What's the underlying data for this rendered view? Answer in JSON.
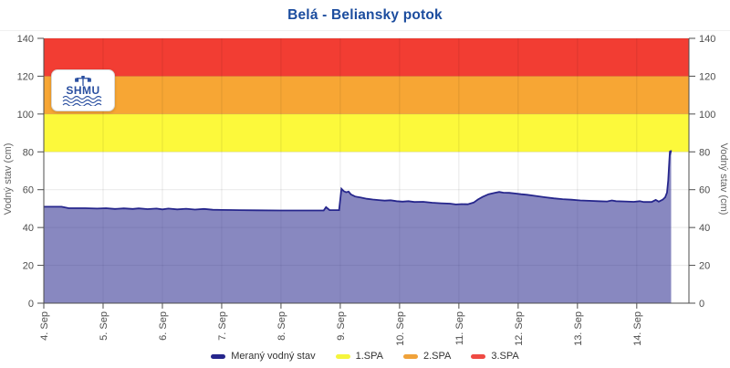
{
  "header": {
    "title": "Belá - Beliansky potok"
  },
  "logo": {
    "text": "SHMU"
  },
  "chart_data": {
    "type": "area",
    "title": "Belá - Beliansky potok",
    "ylabel_left": "Vodný stav (cm)",
    "ylabel_right": "Vodný stav (cm)",
    "ylim": [
      0,
      140
    ],
    "yticks": [
      0,
      20,
      40,
      60,
      80,
      100,
      120,
      140
    ],
    "x_domain_days": [
      4,
      14.88
    ],
    "xticks": [
      {
        "day": 4,
        "label": "4. Sep"
      },
      {
        "day": 5,
        "label": "5. Sep"
      },
      {
        "day": 6,
        "label": "6. Sep"
      },
      {
        "day": 7,
        "label": "7. Sep"
      },
      {
        "day": 8,
        "label": "8. Sep"
      },
      {
        "day": 9,
        "label": "9. Sep"
      },
      {
        "day": 10,
        "label": "10. Sep"
      },
      {
        "day": 11,
        "label": "11. Sep"
      },
      {
        "day": 12,
        "label": "12. Sep"
      },
      {
        "day": 13,
        "label": "13. Sep"
      },
      {
        "day": 14,
        "label": "14. Sep"
      }
    ],
    "grid": true,
    "legend_position": "bottom",
    "bands": [
      {
        "key": "1spa",
        "label": "1.SPA",
        "from": 80,
        "to": 100,
        "color": "#fcf93b"
      },
      {
        "key": "2spa",
        "label": "2.SPA",
        "from": 100,
        "to": 120,
        "color": "#f7a634"
      },
      {
        "key": "3spa",
        "label": "3.SPA",
        "from": 120,
        "to": 140,
        "color": "#f23d33"
      }
    ],
    "series": [
      {
        "name": "Meraný vodný stav",
        "unit": "cm",
        "line_color": "#26268c",
        "fill_color": "rgba(38,38,140,0.55)",
        "points_day_cm": [
          [
            4.0,
            51
          ],
          [
            4.3,
            51
          ],
          [
            4.42,
            50.2
          ],
          [
            4.7,
            50.2
          ],
          [
            4.9,
            50
          ],
          [
            5.05,
            50.2
          ],
          [
            5.2,
            49.8
          ],
          [
            5.35,
            50.1
          ],
          [
            5.5,
            49.8
          ],
          [
            5.6,
            50.1
          ],
          [
            5.75,
            49.7
          ],
          [
            5.9,
            50
          ],
          [
            6.0,
            49.6
          ],
          [
            6.1,
            50
          ],
          [
            6.25,
            49.6
          ],
          [
            6.4,
            49.9
          ],
          [
            6.55,
            49.5
          ],
          [
            6.7,
            49.8
          ],
          [
            6.85,
            49.4
          ],
          [
            7.0,
            49.3
          ],
          [
            7.3,
            49.2
          ],
          [
            7.6,
            49.1
          ],
          [
            8.0,
            49
          ],
          [
            8.4,
            49
          ],
          [
            8.72,
            49
          ],
          [
            8.76,
            50.8
          ],
          [
            8.82,
            49.2
          ],
          [
            8.98,
            49.2
          ],
          [
            9.02,
            60.5
          ],
          [
            9.06,
            59.2
          ],
          [
            9.1,
            58.6
          ],
          [
            9.14,
            59
          ],
          [
            9.18,
            57.5
          ],
          [
            9.25,
            56.4
          ],
          [
            9.35,
            55.8
          ],
          [
            9.45,
            55.2
          ],
          [
            9.55,
            54.8
          ],
          [
            9.65,
            54.5
          ],
          [
            9.75,
            54.2
          ],
          [
            9.85,
            54.4
          ],
          [
            9.95,
            53.9
          ],
          [
            10.05,
            53.7
          ],
          [
            10.15,
            53.9
          ],
          [
            10.25,
            53.5
          ],
          [
            10.4,
            53.6
          ],
          [
            10.55,
            53.1
          ],
          [
            10.7,
            52.8
          ],
          [
            10.85,
            52.6
          ],
          [
            10.95,
            52.2
          ],
          [
            11.05,
            52.4
          ],
          [
            11.15,
            52.3
          ],
          [
            11.25,
            53.2
          ],
          [
            11.32,
            54.8
          ],
          [
            11.4,
            56.2
          ],
          [
            11.5,
            57.6
          ],
          [
            11.6,
            58.3
          ],
          [
            11.68,
            58.8
          ],
          [
            11.75,
            58.4
          ],
          [
            11.85,
            58.3
          ],
          [
            11.95,
            58
          ],
          [
            12.05,
            57.6
          ],
          [
            12.15,
            57.3
          ],
          [
            12.3,
            56.7
          ],
          [
            12.45,
            56
          ],
          [
            12.6,
            55.4
          ],
          [
            12.75,
            55
          ],
          [
            12.9,
            54.7
          ],
          [
            13.05,
            54.3
          ],
          [
            13.2,
            54.1
          ],
          [
            13.35,
            53.9
          ],
          [
            13.5,
            53.8
          ],
          [
            13.58,
            54.3
          ],
          [
            13.65,
            53.9
          ],
          [
            13.8,
            53.8
          ],
          [
            13.95,
            53.6
          ],
          [
            14.05,
            53.9
          ],
          [
            14.12,
            53.5
          ],
          [
            14.25,
            53.5
          ],
          [
            14.32,
            54.6
          ],
          [
            14.37,
            53.7
          ],
          [
            14.44,
            54.8
          ],
          [
            14.48,
            56
          ],
          [
            14.51,
            58.5
          ],
          [
            14.53,
            65
          ],
          [
            14.55,
            76
          ],
          [
            14.56,
            80.5
          ],
          [
            14.57,
            79.6
          ],
          [
            14.58,
            80.8
          ]
        ]
      }
    ],
    "legend": [
      {
        "label": "Meraný vodný stav",
        "color": "#26268c"
      },
      {
        "label": "1.SPA",
        "color": "#f5f53c"
      },
      {
        "label": "2.SPA",
        "color": "#f0a23a"
      },
      {
        "label": "3.SPA",
        "color": "#ef4a43"
      }
    ]
  }
}
